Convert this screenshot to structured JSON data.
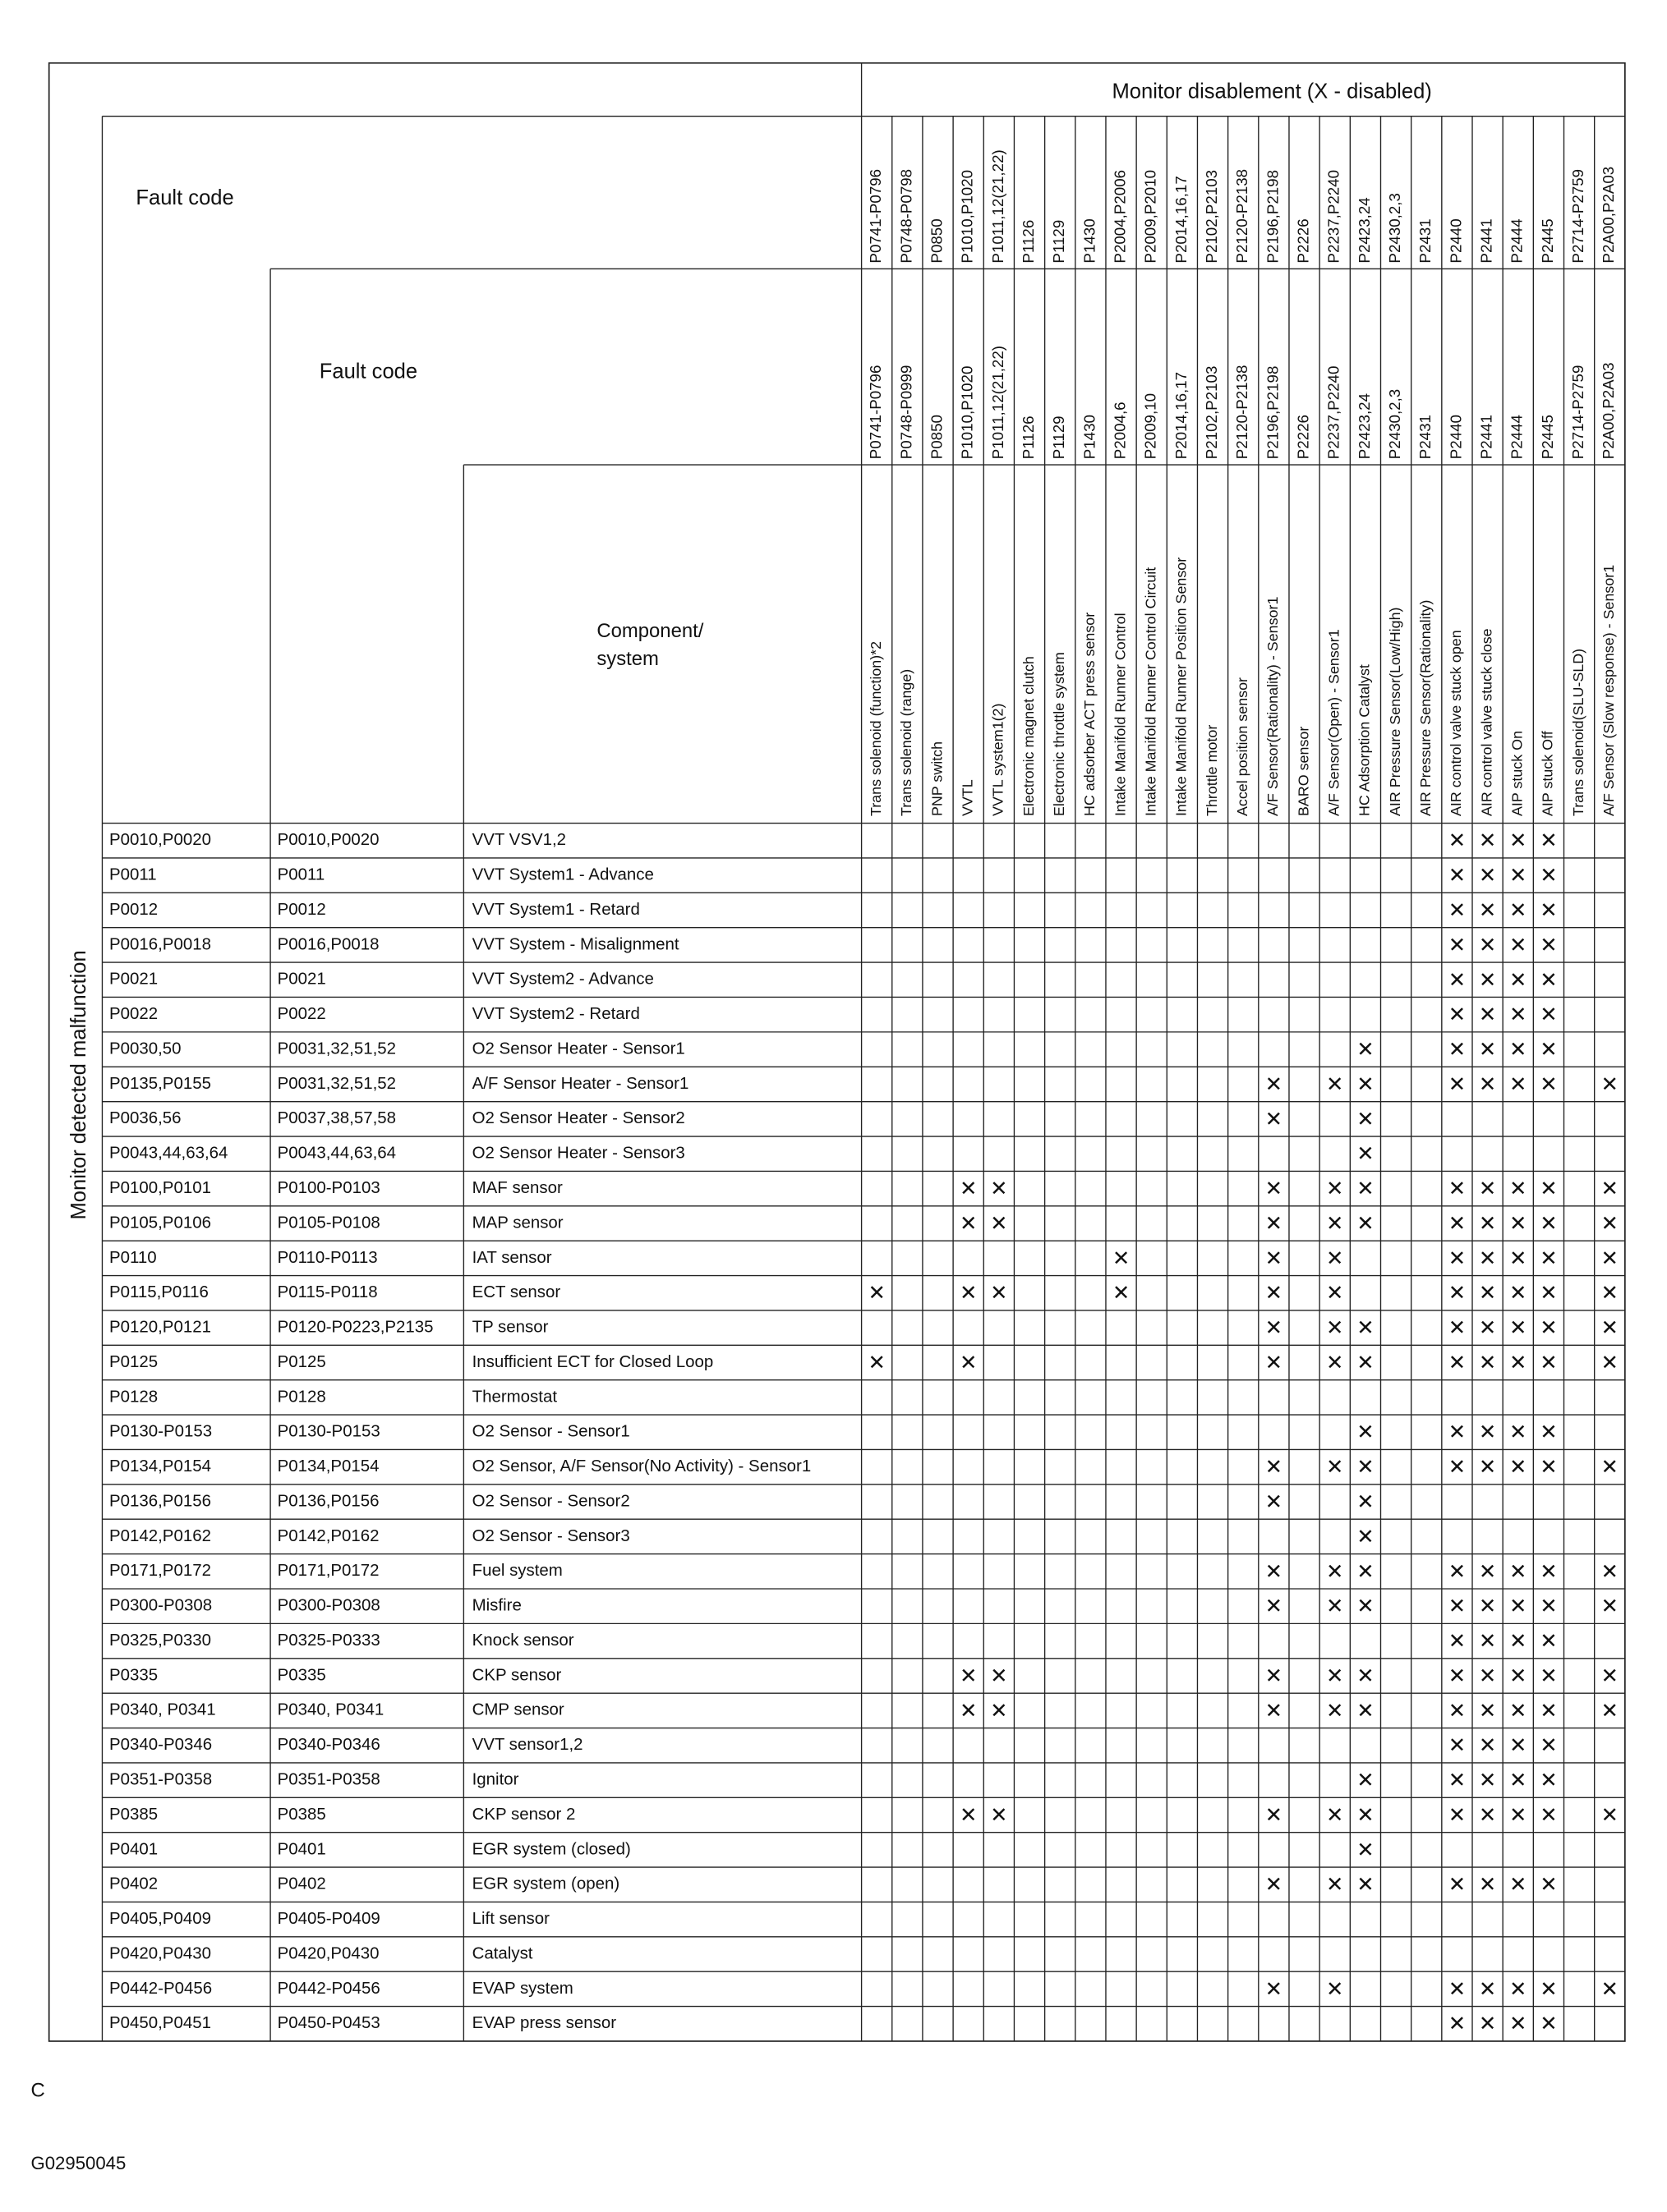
{
  "title": "Monitor disablement (X - disabled)",
  "side_label": "Monitor detected malfunction",
  "header_fault_code_1": "Fault code",
  "header_fault_code_2": "Fault code",
  "header_component": "Component/ system",
  "columns": [
    {
      "code1": "P0741-P0796",
      "code2": "P0741-P0796",
      "component": "Trans solenoid (function)*2"
    },
    {
      "code1": "P0748-P0798",
      "code2": "P0748-P0999",
      "component": "Trans solenoid (range)"
    },
    {
      "code1": "P0850",
      "code2": "P0850",
      "component": "PNP switch"
    },
    {
      "code1": "P1010,P1020",
      "code2": "P1010,P1020",
      "component": "VVTL"
    },
    {
      "code1": "P1011,12(21,22)",
      "code2": "P1011,12(21,22)",
      "component": "VVTL system1(2)"
    },
    {
      "code1": "P1126",
      "code2": "P1126",
      "component": "Electronic magnet clutch"
    },
    {
      "code1": "P1129",
      "code2": "P1129",
      "component": "Electronic throttle system"
    },
    {
      "code1": "P1430",
      "code2": "P1430",
      "component": "HC adsorber ACT press sensor"
    },
    {
      "code1": "P2004,P2006",
      "code2": "P2004,6",
      "component": "Intake Manifold Runner Control"
    },
    {
      "code1": "P2009,P2010",
      "code2": "P2009,10",
      "component": "Intake Manifold Runner Control Circuit"
    },
    {
      "code1": "P2014,16,17",
      "code2": "P2014,16,17",
      "component": "Intake Manifold Runner Position Sensor"
    },
    {
      "code1": "P2102,P2103",
      "code2": "P2102,P2103",
      "component": "Throttle motor"
    },
    {
      "code1": "P2120-P2138",
      "code2": "P2120-P2138",
      "component": "Accel position sensor"
    },
    {
      "code1": "P2196,P2198",
      "code2": "P2196,P2198",
      "component": "A/F Sensor(Rationality) - Sensor1"
    },
    {
      "code1": "P2226",
      "code2": "P2226",
      "component": "BARO sensor"
    },
    {
      "code1": "P2237,P2240",
      "code2": "P2237,P2240",
      "component": "A/F Sensor(Open) - Sensor1"
    },
    {
      "code1": "P2423,24",
      "code2": "P2423,24",
      "component": "HC Adsorption Catalyst"
    },
    {
      "code1": "P2430,2,3",
      "code2": "P2430,2,3",
      "component": "AIR Pressure Sensor(Low/High)"
    },
    {
      "code1": "P2431",
      "code2": "P2431",
      "component": "AIR Pressure Sensor(Rationality)"
    },
    {
      "code1": "P2440",
      "code2": "P2440",
      "component": "AIR control valve stuck open"
    },
    {
      "code1": "P2441",
      "code2": "P2441",
      "component": "AIR control valve stuck close"
    },
    {
      "code1": "P2444",
      "code2": "P2444",
      "component": "AIP stuck On"
    },
    {
      "code1": "P2445",
      "code2": "P2445",
      "component": "AIP stuck Off"
    },
    {
      "code1": "P2714-P2759",
      "code2": "P2714-P2759",
      "component": "Trans solenoid(SLU-SLD)"
    },
    {
      "code1": "P2A00,P2A03",
      "code2": "P2A00,P2A03",
      "component": "A/F Sensor (Slow response) - Sensor1"
    }
  ],
  "rows": [
    {
      "code1": "P0010,P0020",
      "code2": "P0010,P0020",
      "component": "VVT VSV1,2",
      "cells": [
        null,
        null,
        null,
        null,
        null,
        null,
        null,
        null,
        null,
        null,
        null,
        null,
        null,
        null,
        null,
        null,
        null,
        null,
        null,
        "✕",
        "✕",
        "✕",
        "✕",
        null,
        null
      ]
    },
    {
      "code1": "P0011",
      "code2": "P0011",
      "component": "VVT System1 - Advance",
      "cells": [
        null,
        null,
        null,
        null,
        null,
        null,
        null,
        null,
        null,
        null,
        null,
        null,
        null,
        null,
        null,
        null,
        null,
        null,
        null,
        "✕",
        "✕",
        "✕",
        "✕",
        null,
        null
      ]
    },
    {
      "code1": "P0012",
      "code2": "P0012",
      "component": "VVT System1 - Retard",
      "cells": [
        null,
        null,
        null,
        null,
        null,
        null,
        null,
        null,
        null,
        null,
        null,
        null,
        null,
        null,
        null,
        null,
        null,
        null,
        null,
        "✕",
        "✕",
        "✕",
        "✕",
        null,
        null
      ]
    },
    {
      "code1": "P0016,P0018",
      "code2": "P0016,P0018",
      "component": "VVT System - Misalignment",
      "cells": [
        null,
        null,
        null,
        null,
        null,
        null,
        null,
        null,
        null,
        null,
        null,
        null,
        null,
        null,
        null,
        null,
        null,
        null,
        null,
        "✕",
        "✕",
        "✕",
        "✕",
        null,
        null
      ]
    },
    {
      "code1": "P0021",
      "code2": "P0021",
      "component": "VVT System2 - Advance",
      "cells": [
        null,
        null,
        null,
        null,
        null,
        null,
        null,
        null,
        null,
        null,
        null,
        null,
        null,
        null,
        null,
        null,
        null,
        null,
        null,
        "✕",
        "✕",
        "✕",
        "✕",
        null,
        null
      ]
    },
    {
      "code1": "P0022",
      "code2": "P0022",
      "component": "VVT System2 - Retard",
      "cells": [
        null,
        null,
        null,
        null,
        null,
        null,
        null,
        null,
        null,
        null,
        null,
        null,
        null,
        null,
        null,
        null,
        null,
        null,
        null,
        "✕",
        "✕",
        "✕",
        "✕",
        null,
        null
      ]
    },
    {
      "code1": "P0030,50",
      "code2": "P0031,32,51,52",
      "component": "O2 Sensor Heater - Sensor1",
      "cells": [
        null,
        null,
        null,
        null,
        null,
        null,
        null,
        null,
        null,
        null,
        null,
        null,
        null,
        null,
        null,
        null,
        "✕",
        null,
        null,
        "✕",
        "✕",
        "✕",
        "✕",
        null,
        null
      ]
    },
    {
      "code1": "P0135,P0155",
      "code2": "P0031,32,51,52",
      "component": "A/F Sensor Heater  - Sensor1",
      "cells": [
        null,
        null,
        null,
        null,
        null,
        null,
        null,
        null,
        null,
        null,
        null,
        null,
        null,
        "✕",
        null,
        "✕",
        "✕",
        null,
        null,
        "✕",
        "✕",
        "✕",
        "✕",
        null,
        "✕"
      ]
    },
    {
      "code1": "P0036,56",
      "code2": "P0037,38,57,58",
      "component": "O2 Sensor Heater - Sensor2",
      "cells": [
        null,
        null,
        null,
        null,
        null,
        null,
        null,
        null,
        null,
        null,
        null,
        null,
        null,
        "✕",
        null,
        null,
        "✕",
        null,
        null,
        null,
        null,
        null,
        null,
        null,
        null
      ]
    },
    {
      "code1": "P0043,44,63,64",
      "code2": "P0043,44,63,64",
      "component": "O2 Sensor Heater - Sensor3",
      "cells": [
        null,
        null,
        null,
        null,
        null,
        null,
        null,
        null,
        null,
        null,
        null,
        null,
        null,
        null,
        null,
        null,
        "✕",
        null,
        null,
        null,
        null,
        null,
        null,
        null,
        null
      ]
    },
    {
      "code1": "P0100,P0101",
      "code2": "P0100-P0103",
      "component": "MAF sensor",
      "cells": [
        null,
        null,
        null,
        "✕",
        "✕",
        null,
        null,
        null,
        null,
        null,
        null,
        null,
        null,
        "✕",
        null,
        "✕",
        "✕",
        null,
        null,
        "✕",
        "✕",
        "✕",
        "✕",
        null,
        "✕"
      ]
    },
    {
      "code1": "P0105,P0106",
      "code2": "P0105-P0108",
      "component": "MAP sensor",
      "cells": [
        null,
        null,
        null,
        "✕",
        "✕",
        null,
        null,
        null,
        null,
        null,
        null,
        null,
        null,
        "✕",
        null,
        "✕",
        "✕",
        null,
        null,
        "✕",
        "✕",
        "✕",
        "✕",
        null,
        "✕"
      ]
    },
    {
      "code1": "P0110",
      "code2": "P0110-P0113",
      "component": "IAT sensor",
      "cells": [
        null,
        null,
        null,
        null,
        null,
        null,
        null,
        null,
        "✕",
        null,
        null,
        null,
        null,
        "✕",
        null,
        "✕",
        null,
        null,
        null,
        "✕",
        "✕",
        "✕",
        "✕",
        null,
        "✕"
      ]
    },
    {
      "code1": "P0115,P0116",
      "code2": "P0115-P0118",
      "component": "ECT sensor",
      "cells": [
        "✕",
        null,
        null,
        "✕",
        "✕",
        null,
        null,
        null,
        "✕",
        null,
        null,
        null,
        null,
        "✕",
        null,
        "✕",
        null,
        null,
        null,
        "✕",
        "✕",
        "✕",
        "✕",
        null,
        "✕"
      ]
    },
    {
      "code1": "P0120,P0121",
      "code2": "P0120-P0223,P2135",
      "component": "TP sensor",
      "cells": [
        null,
        null,
        null,
        null,
        null,
        null,
        null,
        null,
        null,
        null,
        null,
        null,
        null,
        "✕",
        null,
        "✕",
        "✕",
        null,
        null,
        "✕",
        "✕",
        "✕",
        "✕",
        null,
        "✕"
      ]
    },
    {
      "code1": "P0125",
      "code2": "P0125",
      "component": "Insufficient ECT for Closed Loop",
      "cells": [
        "✕",
        null,
        null,
        "✕",
        null,
        null,
        null,
        null,
        null,
        null,
        null,
        null,
        null,
        "✕",
        null,
        "✕",
        "✕",
        null,
        null,
        "✕",
        "✕",
        "✕",
        "✕",
        null,
        "✕"
      ]
    },
    {
      "code1": "P0128",
      "code2": "P0128",
      "component": "Thermostat",
      "cells": [
        null,
        null,
        null,
        null,
        null,
        null,
        null,
        null,
        null,
        null,
        null,
        null,
        null,
        null,
        null,
        null,
        null,
        null,
        null,
        null,
        null,
        null,
        null,
        null,
        null
      ]
    },
    {
      "code1": "P0130-P0153",
      "code2": "P0130-P0153",
      "component": "O2 Sensor - Sensor1",
      "cells": [
        null,
        null,
        null,
        null,
        null,
        null,
        null,
        null,
        null,
        null,
        null,
        null,
        null,
        null,
        null,
        null,
        "✕",
        null,
        null,
        "✕",
        "✕",
        "✕",
        "✕",
        null,
        null
      ]
    },
    {
      "code1": "P0134,P0154",
      "code2": "P0134,P0154",
      "component": "O2 Sensor, A/F Sensor(No Activity) - Sensor1",
      "cells": [
        null,
        null,
        null,
        null,
        null,
        null,
        null,
        null,
        null,
        null,
        null,
        null,
        null,
        "✕",
        null,
        "✕",
        "✕",
        null,
        null,
        "✕",
        "✕",
        "✕",
        "✕",
        null,
        "✕"
      ]
    },
    {
      "code1": "P0136,P0156",
      "code2": "P0136,P0156",
      "component": "O2 Sensor - Sensor2",
      "cells": [
        null,
        null,
        null,
        null,
        null,
        null,
        null,
        null,
        null,
        null,
        null,
        null,
        null,
        "✕",
        null,
        null,
        "✕",
        null,
        null,
        null,
        null,
        null,
        null,
        null,
        null
      ]
    },
    {
      "code1": "P0142,P0162",
      "code2": "P0142,P0162",
      "component": "O2 Sensor - Sensor3",
      "cells": [
        null,
        null,
        null,
        null,
        null,
        null,
        null,
        null,
        null,
        null,
        null,
        null,
        null,
        null,
        null,
        null,
        "✕",
        null,
        null,
        null,
        null,
        null,
        null,
        null,
        null
      ]
    },
    {
      "code1": "P0171,P0172",
      "code2": "P0171,P0172",
      "component": "Fuel system",
      "cells": [
        null,
        null,
        null,
        null,
        null,
        null,
        null,
        null,
        null,
        null,
        null,
        null,
        null,
        "✕",
        null,
        "✕",
        "✕",
        null,
        null,
        "✕",
        "✕",
        "✕",
        "✕",
        null,
        "✕"
      ]
    },
    {
      "code1": "P0300-P0308",
      "code2": "P0300-P0308",
      "component": "Misfire",
      "cells": [
        null,
        null,
        null,
        null,
        null,
        null,
        null,
        null,
        null,
        null,
        null,
        null,
        null,
        "✕",
        null,
        "✕",
        "✕",
        null,
        null,
        "✕",
        "✕",
        "✕",
        "✕",
        null,
        "✕"
      ]
    },
    {
      "code1": "P0325,P0330",
      "code2": "P0325-P0333",
      "component": "Knock sensor",
      "cells": [
        null,
        null,
        null,
        null,
        null,
        null,
        null,
        null,
        null,
        null,
        null,
        null,
        null,
        null,
        null,
        null,
        null,
        null,
        null,
        "✕",
        "✕",
        "✕",
        "✕",
        null,
        null
      ]
    },
    {
      "code1": "P0335",
      "code2": "P0335",
      "component": "CKP sensor",
      "cells": [
        null,
        null,
        null,
        "✕",
        "✕",
        null,
        null,
        null,
        null,
        null,
        null,
        null,
        null,
        "✕",
        null,
        "✕",
        "✕",
        null,
        null,
        "✕",
        "✕",
        "✕",
        "✕",
        null,
        "✕"
      ]
    },
    {
      "code1": "P0340, P0341",
      "code2": "P0340, P0341",
      "component": "CMP sensor",
      "cells": [
        null,
        null,
        null,
        "✕",
        "✕",
        null,
        null,
        null,
        null,
        null,
        null,
        null,
        null,
        "✕",
        null,
        "✕",
        "✕",
        null,
        null,
        "✕",
        "✕",
        "✕",
        "✕",
        null,
        "✕"
      ]
    },
    {
      "code1": "P0340-P0346",
      "code2": "P0340-P0346",
      "component": "VVT sensor1,2",
      "cells": [
        null,
        null,
        null,
        null,
        null,
        null,
        null,
        null,
        null,
        null,
        null,
        null,
        null,
        null,
        null,
        null,
        null,
        null,
        null,
        "✕",
        "✕",
        "✕",
        "✕",
        null,
        null
      ]
    },
    {
      "code1": "P0351-P0358",
      "code2": "P0351-P0358",
      "component": "Ignitor",
      "cells": [
        null,
        null,
        null,
        null,
        null,
        null,
        null,
        null,
        null,
        null,
        null,
        null,
        null,
        null,
        null,
        null,
        "✕",
        null,
        null,
        "✕",
        "✕",
        "✕",
        "✕",
        null,
        null
      ]
    },
    {
      "code1": "P0385",
      "code2": "P0385",
      "component": "CKP sensor 2",
      "cells": [
        null,
        null,
        null,
        "✕",
        "✕",
        null,
        null,
        null,
        null,
        null,
        null,
        null,
        null,
        "✕",
        null,
        "✕",
        "✕",
        null,
        null,
        "✕",
        "✕",
        "✕",
        "✕",
        null,
        "✕"
      ]
    },
    {
      "code1": "P0401",
      "code2": "P0401",
      "component": "EGR system (closed)",
      "cells": [
        null,
        null,
        null,
        null,
        null,
        null,
        null,
        null,
        null,
        null,
        null,
        null,
        null,
        null,
        null,
        null,
        "✕",
        null,
        null,
        null,
        null,
        null,
        null,
        null,
        null
      ]
    },
    {
      "code1": "P0402",
      "code2": "P0402",
      "component": "EGR system (open)",
      "cells": [
        null,
        null,
        null,
        null,
        null,
        null,
        null,
        null,
        null,
        null,
        null,
        null,
        null,
        "✕",
        null,
        "✕",
        "✕",
        null,
        null,
        "✕",
        "✕",
        "✕",
        "✕",
        null,
        null
      ]
    },
    {
      "code1": "P0405,P0409",
      "code2": "P0405-P0409",
      "component": "Lift sensor",
      "cells": [
        null,
        null,
        null,
        null,
        null,
        null,
        null,
        null,
        null,
        null,
        null,
        null,
        null,
        null,
        null,
        null,
        null,
        null,
        null,
        null,
        null,
        null,
        null,
        null,
        null
      ]
    },
    {
      "code1": "P0420,P0430",
      "code2": "P0420,P0430",
      "component": "Catalyst",
      "cells": [
        null,
        null,
        null,
        null,
        null,
        null,
        null,
        null,
        null,
        null,
        null,
        null,
        null,
        null,
        null,
        null,
        null,
        null,
        null,
        null,
        null,
        null,
        null,
        null,
        null
      ]
    },
    {
      "code1": "P0442-P0456",
      "code2": "P0442-P0456",
      "component": "EVAP system",
      "cells": [
        null,
        null,
        null,
        null,
        null,
        null,
        null,
        null,
        null,
        null,
        null,
        null,
        null,
        "✕",
        null,
        "✕",
        null,
        null,
        null,
        "✕",
        "✕",
        "✕",
        "✕",
        null,
        "✕"
      ]
    },
    {
      "code1": "P0450,P0451",
      "code2": "P0450-P0453",
      "component": "EVAP press sensor",
      "cells": [
        null,
        null,
        null,
        null,
        null,
        null,
        null,
        null,
        null,
        null,
        null,
        null,
        null,
        null,
        null,
        null,
        null,
        null,
        null,
        "✕",
        "✕",
        "✕",
        "✕",
        null,
        null
      ]
    }
  ],
  "footer_letter": "C",
  "footer_code": "G02950045"
}
